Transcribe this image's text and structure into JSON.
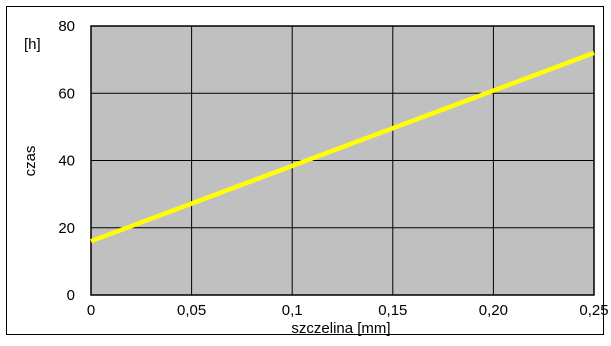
{
  "chart_data": {
    "type": "line",
    "title": "",
    "xlabel": "szczelina [mm]",
    "ylabel": "czas",
    "yunit": "[h]",
    "xlim": [
      0,
      0.25
    ],
    "ylim": [
      0,
      80
    ],
    "xticks": [
      0,
      0.05,
      0.1,
      0.15,
      0.2,
      0.25
    ],
    "xtick_labels": [
      "0",
      "0,05",
      "0,1",
      "0,15",
      "0,20",
      "0,25"
    ],
    "yticks": [
      0,
      20,
      40,
      60,
      80
    ],
    "ytick_labels": [
      "0",
      "20",
      "40",
      "60",
      "80"
    ],
    "grid": true,
    "series": [
      {
        "x": [
          0,
          0.25
        ],
        "y": [
          16,
          72
        ],
        "color": "#ffff00"
      }
    ],
    "colors": {
      "plot_bg": "#c0c0c0",
      "grid": "#000000",
      "frame": "#000000"
    }
  }
}
